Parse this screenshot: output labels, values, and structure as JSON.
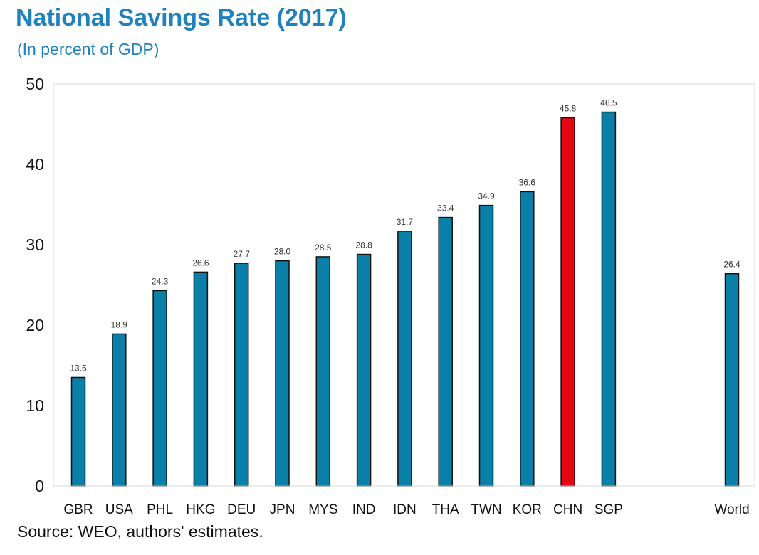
{
  "chart_data": {
    "type": "bar",
    "title": "National Savings Rate (2017)",
    "subtitle": "(In percent of GDP)",
    "source": "Source: WEO, authors' estimates.",
    "categories": [
      "GBR",
      "USA",
      "PHL",
      "HKG",
      "DEU",
      "JPN",
      "MYS",
      "IND",
      "IDN",
      "THA",
      "TWN",
      "KOR",
      "CHN",
      "SGP",
      "World"
    ],
    "values": [
      13.5,
      18.9,
      24.3,
      26.6,
      27.7,
      28.0,
      28.5,
      28.8,
      31.7,
      33.4,
      34.9,
      36.6,
      45.8,
      46.5,
      26.4
    ],
    "data_labels": [
      "13.5",
      "18.9",
      "24.3",
      "26.6",
      "27.7",
      "28.0",
      "28.5",
      "28.8",
      "31.7",
      "33.4",
      "34.9",
      "36.6",
      "45.8",
      "46.5",
      "26.4"
    ],
    "highlight": "CHN",
    "ylim": [
      0,
      50
    ],
    "yticks": [
      0,
      10,
      20,
      30,
      40,
      50
    ],
    "xlabel": "",
    "ylabel": "",
    "grid": false,
    "colors": {
      "bar": "#0a80a9",
      "highlight": "#e30613",
      "bar_outline": "#111111",
      "title": "#1f82bf"
    }
  }
}
